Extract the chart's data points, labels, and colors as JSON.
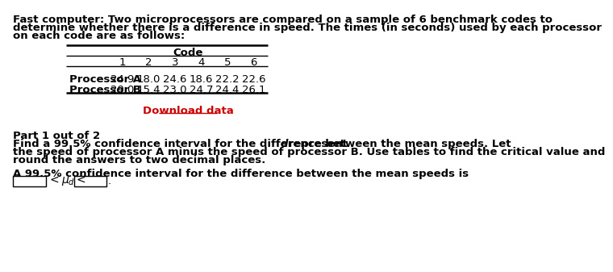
{
  "title_lines": [
    "Fast computer: Two microprocessors are compared on a sample of 6 benchmark codes to",
    "determine whether there is a difference in speed. The times (in seconds) used by each processor",
    "on each code are as follows:"
  ],
  "table_header": "Code",
  "col_labels": [
    "1",
    "2",
    "3",
    "4",
    "5",
    "6"
  ],
  "row_labels": [
    "Processor A",
    "Processor B"
  ],
  "table_data": [
    [
      24.9,
      18.0,
      24.6,
      18.6,
      22.2,
      22.6
    ],
    [
      29.0,
      15.4,
      23.0,
      24.7,
      24.4,
      26.1
    ]
  ],
  "download_text": "Download data",
  "download_color": "#cc0000",
  "part_text": "Part 1 out of 2",
  "find_line1": "Find a 99.5% confidence interval for the difference between the mean speeds. Let ",
  "find_italic": "d",
  "find_after_italic": " represent",
  "find_lines_rest": [
    "the speed of processor A minus the speed of processor B. Use tables to find the critical value and",
    "round the answers to two decimal places."
  ],
  "interval_text": "A 99.5% confidence interval for the difference between the mean speeds is",
  "background_color": "#ffffff",
  "text_color": "#000000",
  "font_size": 9.5
}
